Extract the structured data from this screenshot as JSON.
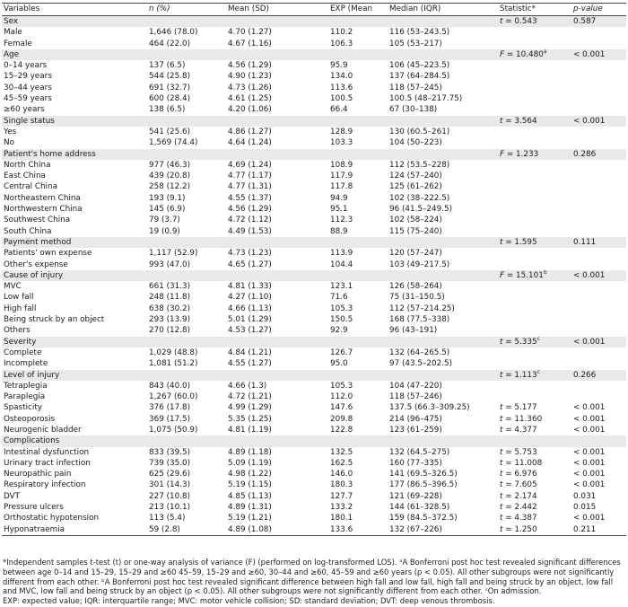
{
  "headers": {
    "variables": "Variables",
    "n_pct": "n (%)",
    "mean_sd": "Mean (SD)",
    "exp": "EXP (Mean",
    "median_iqr": "Median (IQR)",
    "statistic": "Statistic*",
    "p_value": "p-value"
  },
  "rows": [
    {
      "type": "section",
      "label": "Sex",
      "stat_sym": "t",
      "stat": " = 0.543",
      "stat_sup": "",
      "p": "0.587"
    },
    {
      "type": "item",
      "label": "Male",
      "n": "1,646 (78.0)",
      "mean": "4.70 (1.27)",
      "exp": "110.2",
      "median": "116 (53–243.5)",
      "stat_sym": "",
      "stat": "",
      "stat_sup": "",
      "p": ""
    },
    {
      "type": "item",
      "label": "Female",
      "n": "464 (22.0)",
      "mean": "4.67 (1.16)",
      "exp": "106.3",
      "median": "105 (53–217)",
      "stat_sym": "",
      "stat": "",
      "stat_sup": "",
      "p": ""
    },
    {
      "type": "section",
      "label": "Age",
      "stat_sym": "F",
      "stat": " = 10.480",
      "stat_sup": "a",
      "p": "< 0.001"
    },
    {
      "type": "item",
      "label": "0–14 years",
      "n": "137 (6.5)",
      "mean": "4.56 (1.29)",
      "exp": "95.9",
      "median": "106 (45–223.5)",
      "stat_sym": "",
      "stat": "",
      "stat_sup": "",
      "p": ""
    },
    {
      "type": "item",
      "label": "15–29 years",
      "n": "544 (25.8)",
      "mean": "4.90 (1.23)",
      "exp": "134.0",
      "median": "137 (64–284.5)",
      "stat_sym": "",
      "stat": "",
      "stat_sup": "",
      "p": ""
    },
    {
      "type": "item",
      "label": "30–44 years",
      "n": "691 (32.7)",
      "mean": "4.73 (1.26)",
      "exp": "113.6",
      "median": "118 (57–245)",
      "stat_sym": "",
      "stat": "",
      "stat_sup": "",
      "p": ""
    },
    {
      "type": "item",
      "label": "45–59 years",
      "n": "600 (28.4)",
      "mean": "4.61 (1.25)",
      "exp": "100.5",
      "median": "100.5 (48–217.75)",
      "stat_sym": "",
      "stat": "",
      "stat_sup": "",
      "p": ""
    },
    {
      "type": "item",
      "label": "≥60 years",
      "n": "138 (6.5)",
      "mean": "4.20 (1.06)",
      "exp": "66.4",
      "median": "67 (30–138)",
      "stat_sym": "",
      "stat": "",
      "stat_sup": "",
      "p": ""
    },
    {
      "type": "section",
      "label": "Single status",
      "stat_sym": "t",
      "stat": " = 3.564",
      "stat_sup": "",
      "p": "< 0.001"
    },
    {
      "type": "item",
      "label": "Yes",
      "n": "541 (25.6)",
      "mean": "4.86 (1.27)",
      "exp": "128.9",
      "median": "130 (60.5–261)",
      "stat_sym": "",
      "stat": "",
      "stat_sup": "",
      "p": ""
    },
    {
      "type": "item",
      "label": "No",
      "n": "1,569 (74.4)",
      "mean": "4.64 (1.24)",
      "exp": "103.3",
      "median": "104 (50–223)",
      "stat_sym": "",
      "stat": "",
      "stat_sup": "",
      "p": ""
    },
    {
      "type": "section",
      "label": "Patient's home address",
      "stat_sym": "F",
      "stat": " = 1.233",
      "stat_sup": "",
      "p": "0.286"
    },
    {
      "type": "item",
      "label": "North China",
      "n": "977 (46.3)",
      "mean": "4.69 (1.24)",
      "exp": "108.9",
      "median": "112 (53.5–228)",
      "stat_sym": "",
      "stat": "",
      "stat_sup": "",
      "p": ""
    },
    {
      "type": "item",
      "label": "East China",
      "n": "439 (20.8)",
      "mean": "4.77 (1.17)",
      "exp": "117.9",
      "median": "124 (57–240)",
      "stat_sym": "",
      "stat": "",
      "stat_sup": "",
      "p": ""
    },
    {
      "type": "item",
      "label": "Central China",
      "n": "258 (12.2)",
      "mean": "4.77 (1.31)",
      "exp": "117.8",
      "median": "125 (61–262)",
      "stat_sym": "",
      "stat": "",
      "stat_sup": "",
      "p": ""
    },
    {
      "type": "item",
      "label": "Northeastern China",
      "n": "193 (9.1)",
      "mean": "4.55 (1.37)",
      "exp": "94.9",
      "median": "102 (38–222.5)",
      "stat_sym": "",
      "stat": "",
      "stat_sup": "",
      "p": ""
    },
    {
      "type": "item",
      "label": "Northwestern China",
      "n": "145 (6.9)",
      "mean": "4.56 (1.29)",
      "exp": "95.1",
      "median": "96 (41.5–249.5)",
      "stat_sym": "",
      "stat": "",
      "stat_sup": "",
      "p": ""
    },
    {
      "type": "item",
      "label": "Southwest China",
      "n": "79 (3.7)",
      "mean": "4.72 (1.12)",
      "exp": "112.3",
      "median": "102 (58–224)",
      "stat_sym": "",
      "stat": "",
      "stat_sup": "",
      "p": ""
    },
    {
      "type": "item",
      "label": "South China",
      "n": "19 (0.9)",
      "mean": "4.49 (1.53)",
      "exp": "88.9",
      "median": "115 (75–240)",
      "stat_sym": "",
      "stat": "",
      "stat_sup": "",
      "p": ""
    },
    {
      "type": "section",
      "label": "Payment method",
      "stat_sym": "t",
      "stat": " = 1.595",
      "stat_sup": "",
      "p": "0.111"
    },
    {
      "type": "item",
      "label": "Patients' own expense",
      "n": "1,117 (52.9)",
      "mean": "4.73 (1.23)",
      "exp": "113.9",
      "median": "120 (57–247)",
      "stat_sym": "",
      "stat": "",
      "stat_sup": "",
      "p": ""
    },
    {
      "type": "item",
      "label": "Other's expense",
      "n": "993 (47.0)",
      "mean": "4.65 (1.27)",
      "exp": "104.4",
      "median": "103 (49–217.5)",
      "stat_sym": "",
      "stat": "",
      "stat_sup": "",
      "p": ""
    },
    {
      "type": "section",
      "label": "Cause of injury",
      "stat_sym": "F",
      "stat": " = 15.101",
      "stat_sup": "b",
      "p": "< 0.001"
    },
    {
      "type": "item",
      "label": "MVC",
      "n": "661 (31.3)",
      "mean": "4.81 (1.33)",
      "exp": "123.1",
      "median": "126 (58–264)",
      "stat_sym": "",
      "stat": "",
      "stat_sup": "",
      "p": ""
    },
    {
      "type": "item",
      "label": "Low fall",
      "n": "248 (11.8)",
      "mean": "4.27 (1.10)",
      "exp": "71.6",
      "median": "75 (31–150.5)",
      "stat_sym": "",
      "stat": "",
      "stat_sup": "",
      "p": ""
    },
    {
      "type": "item",
      "label": "High fall",
      "n": "638 (30.2)",
      "mean": "4.66 (1.13)",
      "exp": "105.3",
      "median": "112 (57–214.25)",
      "stat_sym": "",
      "stat": "",
      "stat_sup": "",
      "p": ""
    },
    {
      "type": "item",
      "label": "Being struck by an object",
      "n": "293 (13.9)",
      "mean": "5.01 (1.29)",
      "exp": "150.5",
      "median": "168 (77.5–338)",
      "stat_sym": "",
      "stat": "",
      "stat_sup": "",
      "p": ""
    },
    {
      "type": "item",
      "label": "Others",
      "n": "270 (12.8)",
      "mean": "4.53 (1.27)",
      "exp": "92.9",
      "median": "96 (43–191)",
      "stat_sym": "",
      "stat": "",
      "stat_sup": "",
      "p": ""
    },
    {
      "type": "section",
      "label": "Severity",
      "stat_sym": "t",
      "stat": " = 5.335",
      "stat_sup": "c",
      "p": "< 0.001"
    },
    {
      "type": "item",
      "label": "Complete",
      "n": "1,029 (48.8)",
      "mean": "4.84 (1.21)",
      "exp": "126.7",
      "median": "132 (64–265.5)",
      "stat_sym": "",
      "stat": "",
      "stat_sup": "",
      "p": ""
    },
    {
      "type": "item",
      "label": "Incomplete",
      "n": "1,081 (51.2)",
      "mean": "4.55 (1.27)",
      "exp": "95.0",
      "median": "97 (43.5–202.5)",
      "stat_sym": "",
      "stat": "",
      "stat_sup": "",
      "p": ""
    },
    {
      "type": "section",
      "label": "Level of injury",
      "stat_sym": "t",
      "stat": " = 1.113",
      "stat_sup": "c",
      "p": "0.266"
    },
    {
      "type": "item",
      "label": "Tetraplegia",
      "n": "843 (40.0)",
      "mean": "4.66 (1.3)",
      "exp": "105.3",
      "median": "104 (47–220)",
      "stat_sym": "",
      "stat": "",
      "stat_sup": "",
      "p": ""
    },
    {
      "type": "item",
      "label": "Paraplegia",
      "n": "1,267 (60.0)",
      "mean": "4.72 (1.21)",
      "exp": "112.0",
      "median": "118 (57–246)",
      "stat_sym": "",
      "stat": "",
      "stat_sup": "",
      "p": ""
    },
    {
      "type": "item",
      "label": "Spasticity",
      "n": "376 (17.8)",
      "mean": "4.99 (1.29)",
      "exp": "147.6",
      "median": "137.5 (66.3–309.25)",
      "stat_sym": "t",
      "stat": " = 5.177",
      "stat_sup": "",
      "p": "< 0.001"
    },
    {
      "type": "item",
      "label": "Osteoporosis",
      "n": "369 (17.5)",
      "mean": "5.35 (1.25)",
      "exp": "209.8",
      "median": "214 (96–475)",
      "stat_sym": "t",
      "stat": " = 11.360",
      "stat_sup": "",
      "p": "< 0.001"
    },
    {
      "type": "item",
      "label": "Neurogenic bladder",
      "n": "1,075 (50.9)",
      "mean": "4.81 (1.19)",
      "exp": "122.8",
      "median": "123 (61–259)",
      "stat_sym": "t",
      "stat": " = 4.377",
      "stat_sup": "",
      "p": "< 0.001"
    },
    {
      "type": "section",
      "label": "Complications",
      "stat_sym": "",
      "stat": "",
      "stat_sup": "",
      "p": ""
    },
    {
      "type": "item",
      "label": "Intestinal dysfunction",
      "n": "833 (39.5)",
      "mean": "4.89 (1.18)",
      "exp": "132.5",
      "median": "132 (64.5–275)",
      "stat_sym": "t",
      "stat": " = 5.753",
      "stat_sup": "",
      "p": "< 0.001"
    },
    {
      "type": "item",
      "label": "Urinary tract infection",
      "n": "739 (35.0)",
      "mean": "5.09 (1.19)",
      "exp": "162.5",
      "median": "160 (77–335)",
      "stat_sym": "t",
      "stat": " = 11.008",
      "stat_sup": "",
      "p": "< 0.001"
    },
    {
      "type": "item",
      "label": "Neuropathic pain",
      "n": "625 (29.6)",
      "mean": "4.98 (1.22)",
      "exp": "146.0",
      "median": "141 (69.5–326.5)",
      "stat_sym": "t",
      "stat": " = 6.976",
      "stat_sup": "",
      "p": "< 0.001"
    },
    {
      "type": "item",
      "label": "Respiratory infection",
      "n": "301 (14.3)",
      "mean": "5.19 (1.15)",
      "exp": "180.3",
      "median": "177 (86.5–396.5)",
      "stat_sym": "t",
      "stat": " = 7.605",
      "stat_sup": "",
      "p": "< 0.001"
    },
    {
      "type": "item",
      "label": "DVT",
      "n": "227 (10.8)",
      "mean": "4.85 (1.13)",
      "exp": "127.7",
      "median": "121 (69–228)",
      "stat_sym": "t",
      "stat": " = 2.174",
      "stat_sup": "",
      "p": "0.031"
    },
    {
      "type": "item",
      "label": "Pressure ulcers",
      "n": "213 (10.1)",
      "mean": "4.89 (1.31)",
      "exp": "133.2",
      "median": "144 (61–328.5)",
      "stat_sym": "t",
      "stat": " = 2.442",
      "stat_sup": "",
      "p": "0.015"
    },
    {
      "type": "item",
      "label": "Orthostatic hypotension",
      "n": "113 (5.4)",
      "mean": "5.19 (1.21)",
      "exp": "180.1",
      "median": "159 (84.5–372.5)",
      "stat_sym": "t",
      "stat": " = 4.387",
      "stat_sup": "",
      "p": "< 0.001"
    },
    {
      "type": "item",
      "label": "Hyponatraemia",
      "n": "59 (2.8)",
      "mean": "4.89 (1.08)",
      "exp": "133.6",
      "median": "132 (67–226)",
      "stat_sym": "t",
      "stat": " = 1.250",
      "stat_sup": "",
      "p": "0.211"
    }
  ],
  "footnote_1": "*Independent samples t-test (t) or one-way analysis of variance (F) (performed on log-transformed LOS). ᵃA Bonferroni post hoc test revealed significant differences between age 0–14 and 15–29, 15–29 and ≥60 45–59, 15–29 and ≥60, 30–44 and ≥60, 45–59 and ≥60 years (p < 0.05). All other subgroups were not significantly different from each other. ᵇA Bonferroni post hoc test revealed significant difference between high fall and low fall, high fall and being struck by an object, low fall and MVC, low fall and being struck by an object (p < 0.05). All other subgroups were not significantly different from each other. ᶜOn admission.",
  "footnote_2": "EXP: expected value; IQR: interquartile range; MVC: motor vehicle collision; SD: standard deviation; DVT: deep venous thrombosis."
}
